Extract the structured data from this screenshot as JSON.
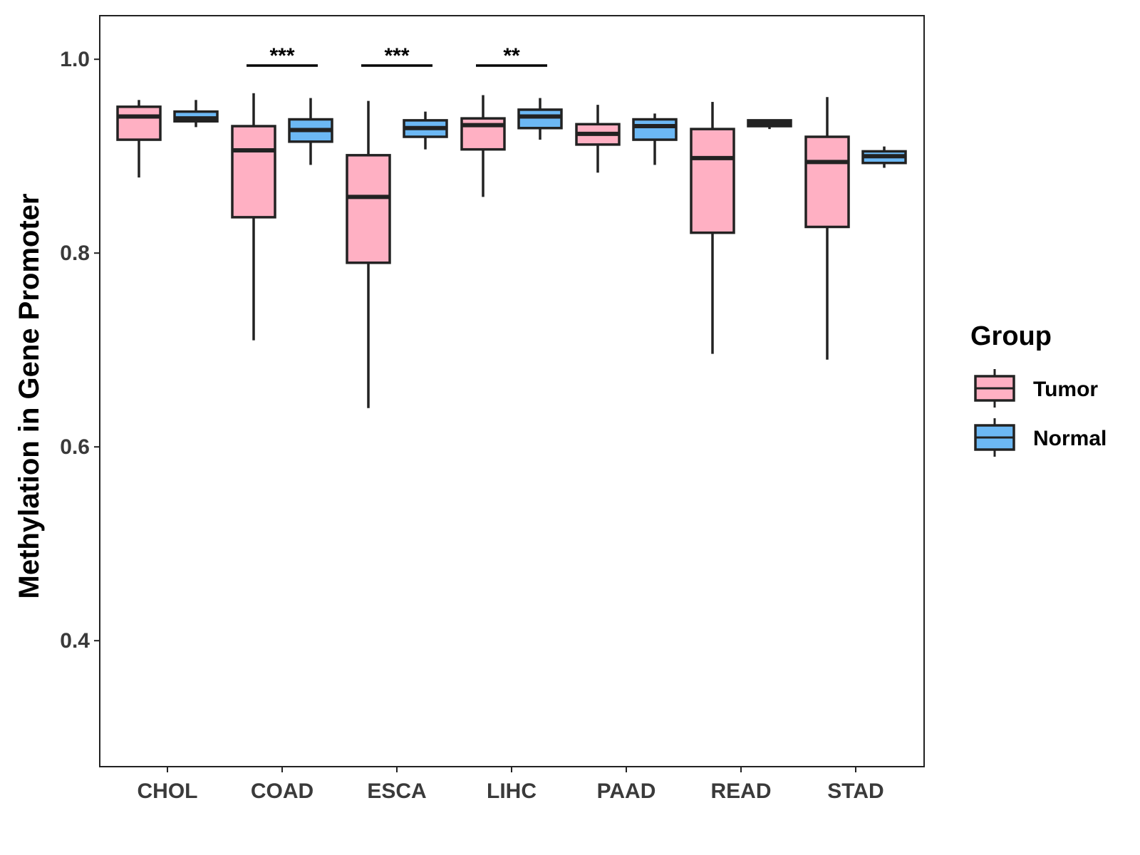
{
  "chart_data": {
    "type": "boxplot",
    "title": "",
    "xlabel": "",
    "ylabel": "Methylation in Gene Promoter",
    "ylim": [
      0.27,
      1.045
    ],
    "yticks": [
      0.4,
      0.6,
      0.8,
      1.0
    ],
    "ytick_labels": [
      "0.4",
      "0.6",
      "0.8",
      "1.0"
    ],
    "grid": false,
    "legend": {
      "title": "Group",
      "position": "right",
      "entries": [
        {
          "name": "Tumor",
          "color": "#FFB0C3"
        },
        {
          "name": "Normal",
          "color": "#6CB8F4"
        }
      ]
    },
    "categories": [
      "CHOL",
      "COAD",
      "ESCA",
      "LIHC",
      "PAAD",
      "READ",
      "STAD"
    ],
    "series": [
      {
        "name": "Tumor",
        "color": "#FFB0C3",
        "boxes": [
          {
            "min": 0.878,
            "q1": 0.917,
            "median": 0.941,
            "q3": 0.951,
            "max": 0.958
          },
          {
            "min": 0.71,
            "q1": 0.837,
            "median": 0.906,
            "q3": 0.931,
            "max": 0.965
          },
          {
            "min": 0.64,
            "q1": 0.79,
            "median": 0.858,
            "q3": 0.901,
            "max": 0.957
          },
          {
            "min": 0.858,
            "q1": 0.907,
            "median": 0.932,
            "q3": 0.939,
            "max": 0.963
          },
          {
            "min": 0.883,
            "q1": 0.912,
            "median": 0.923,
            "q3": 0.933,
            "max": 0.953
          },
          {
            "min": 0.696,
            "q1": 0.821,
            "median": 0.898,
            "q3": 0.928,
            "max": 0.956
          },
          {
            "min": 0.69,
            "q1": 0.827,
            "median": 0.894,
            "q3": 0.92,
            "max": 0.961
          }
        ]
      },
      {
        "name": "Normal",
        "color": "#6CB8F4",
        "boxes": [
          {
            "min": 0.93,
            "q1": 0.936,
            "median": 0.939,
            "q3": 0.946,
            "max": 0.958
          },
          {
            "min": 0.891,
            "q1": 0.915,
            "median": 0.927,
            "q3": 0.938,
            "max": 0.96
          },
          {
            "min": 0.907,
            "q1": 0.92,
            "median": 0.929,
            "q3": 0.937,
            "max": 0.946
          },
          {
            "min": 0.917,
            "q1": 0.929,
            "median": 0.941,
            "q3": 0.948,
            "max": 0.96
          },
          {
            "min": 0.891,
            "q1": 0.917,
            "median": 0.931,
            "q3": 0.938,
            "max": 0.944
          },
          {
            "min": 0.928,
            "q1": 0.931,
            "median": 0.934,
            "q3": 0.937,
            "max": 0.938
          },
          {
            "min": 0.888,
            "q1": 0.893,
            "median": 0.9,
            "q3": 0.905,
            "max": 0.91
          }
        ]
      }
    ],
    "annotations": [
      {
        "category": "COAD",
        "text": "***"
      },
      {
        "category": "ESCA",
        "text": "***"
      },
      {
        "category": "LIHC",
        "text": "**"
      }
    ]
  }
}
